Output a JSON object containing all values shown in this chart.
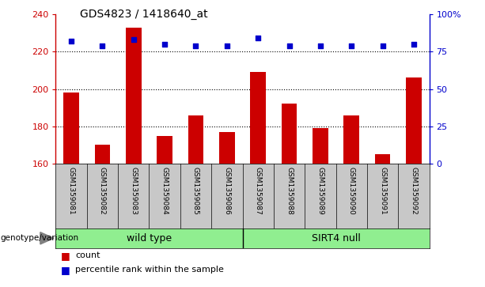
{
  "title": "GDS4823 / 1418640_at",
  "samples": [
    "GSM1359081",
    "GSM1359082",
    "GSM1359083",
    "GSM1359084",
    "GSM1359085",
    "GSM1359086",
    "GSM1359087",
    "GSM1359088",
    "GSM1359089",
    "GSM1359090",
    "GSM1359091",
    "GSM1359092"
  ],
  "counts": [
    198,
    170,
    233,
    175,
    186,
    177,
    209,
    192,
    179,
    186,
    165,
    206
  ],
  "percentile_ranks": [
    82,
    79,
    83,
    80,
    79,
    79,
    84,
    79,
    79,
    79,
    79,
    80
  ],
  "ylim_left": [
    160,
    240
  ],
  "ylim_right": [
    0,
    100
  ],
  "yticks_left": [
    160,
    180,
    200,
    220,
    240
  ],
  "yticks_right": [
    0,
    25,
    50,
    75,
    100
  ],
  "ytick_labels_right": [
    "0",
    "25",
    "50",
    "75",
    "100%"
  ],
  "bar_color": "#cc0000",
  "dot_color": "#0000cc",
  "wild_type_label": "wild type",
  "sirt4_null_label": "SIRT4 null",
  "genotype_label": "genotype/variation",
  "legend_count_label": "count",
  "legend_percentile_label": "percentile rank within the sample",
  "bar_width": 0.5,
  "tick_area_bg": "#c8c8c8",
  "group_color": "#90ee90",
  "wt_count": 6,
  "sirt4_count": 6
}
